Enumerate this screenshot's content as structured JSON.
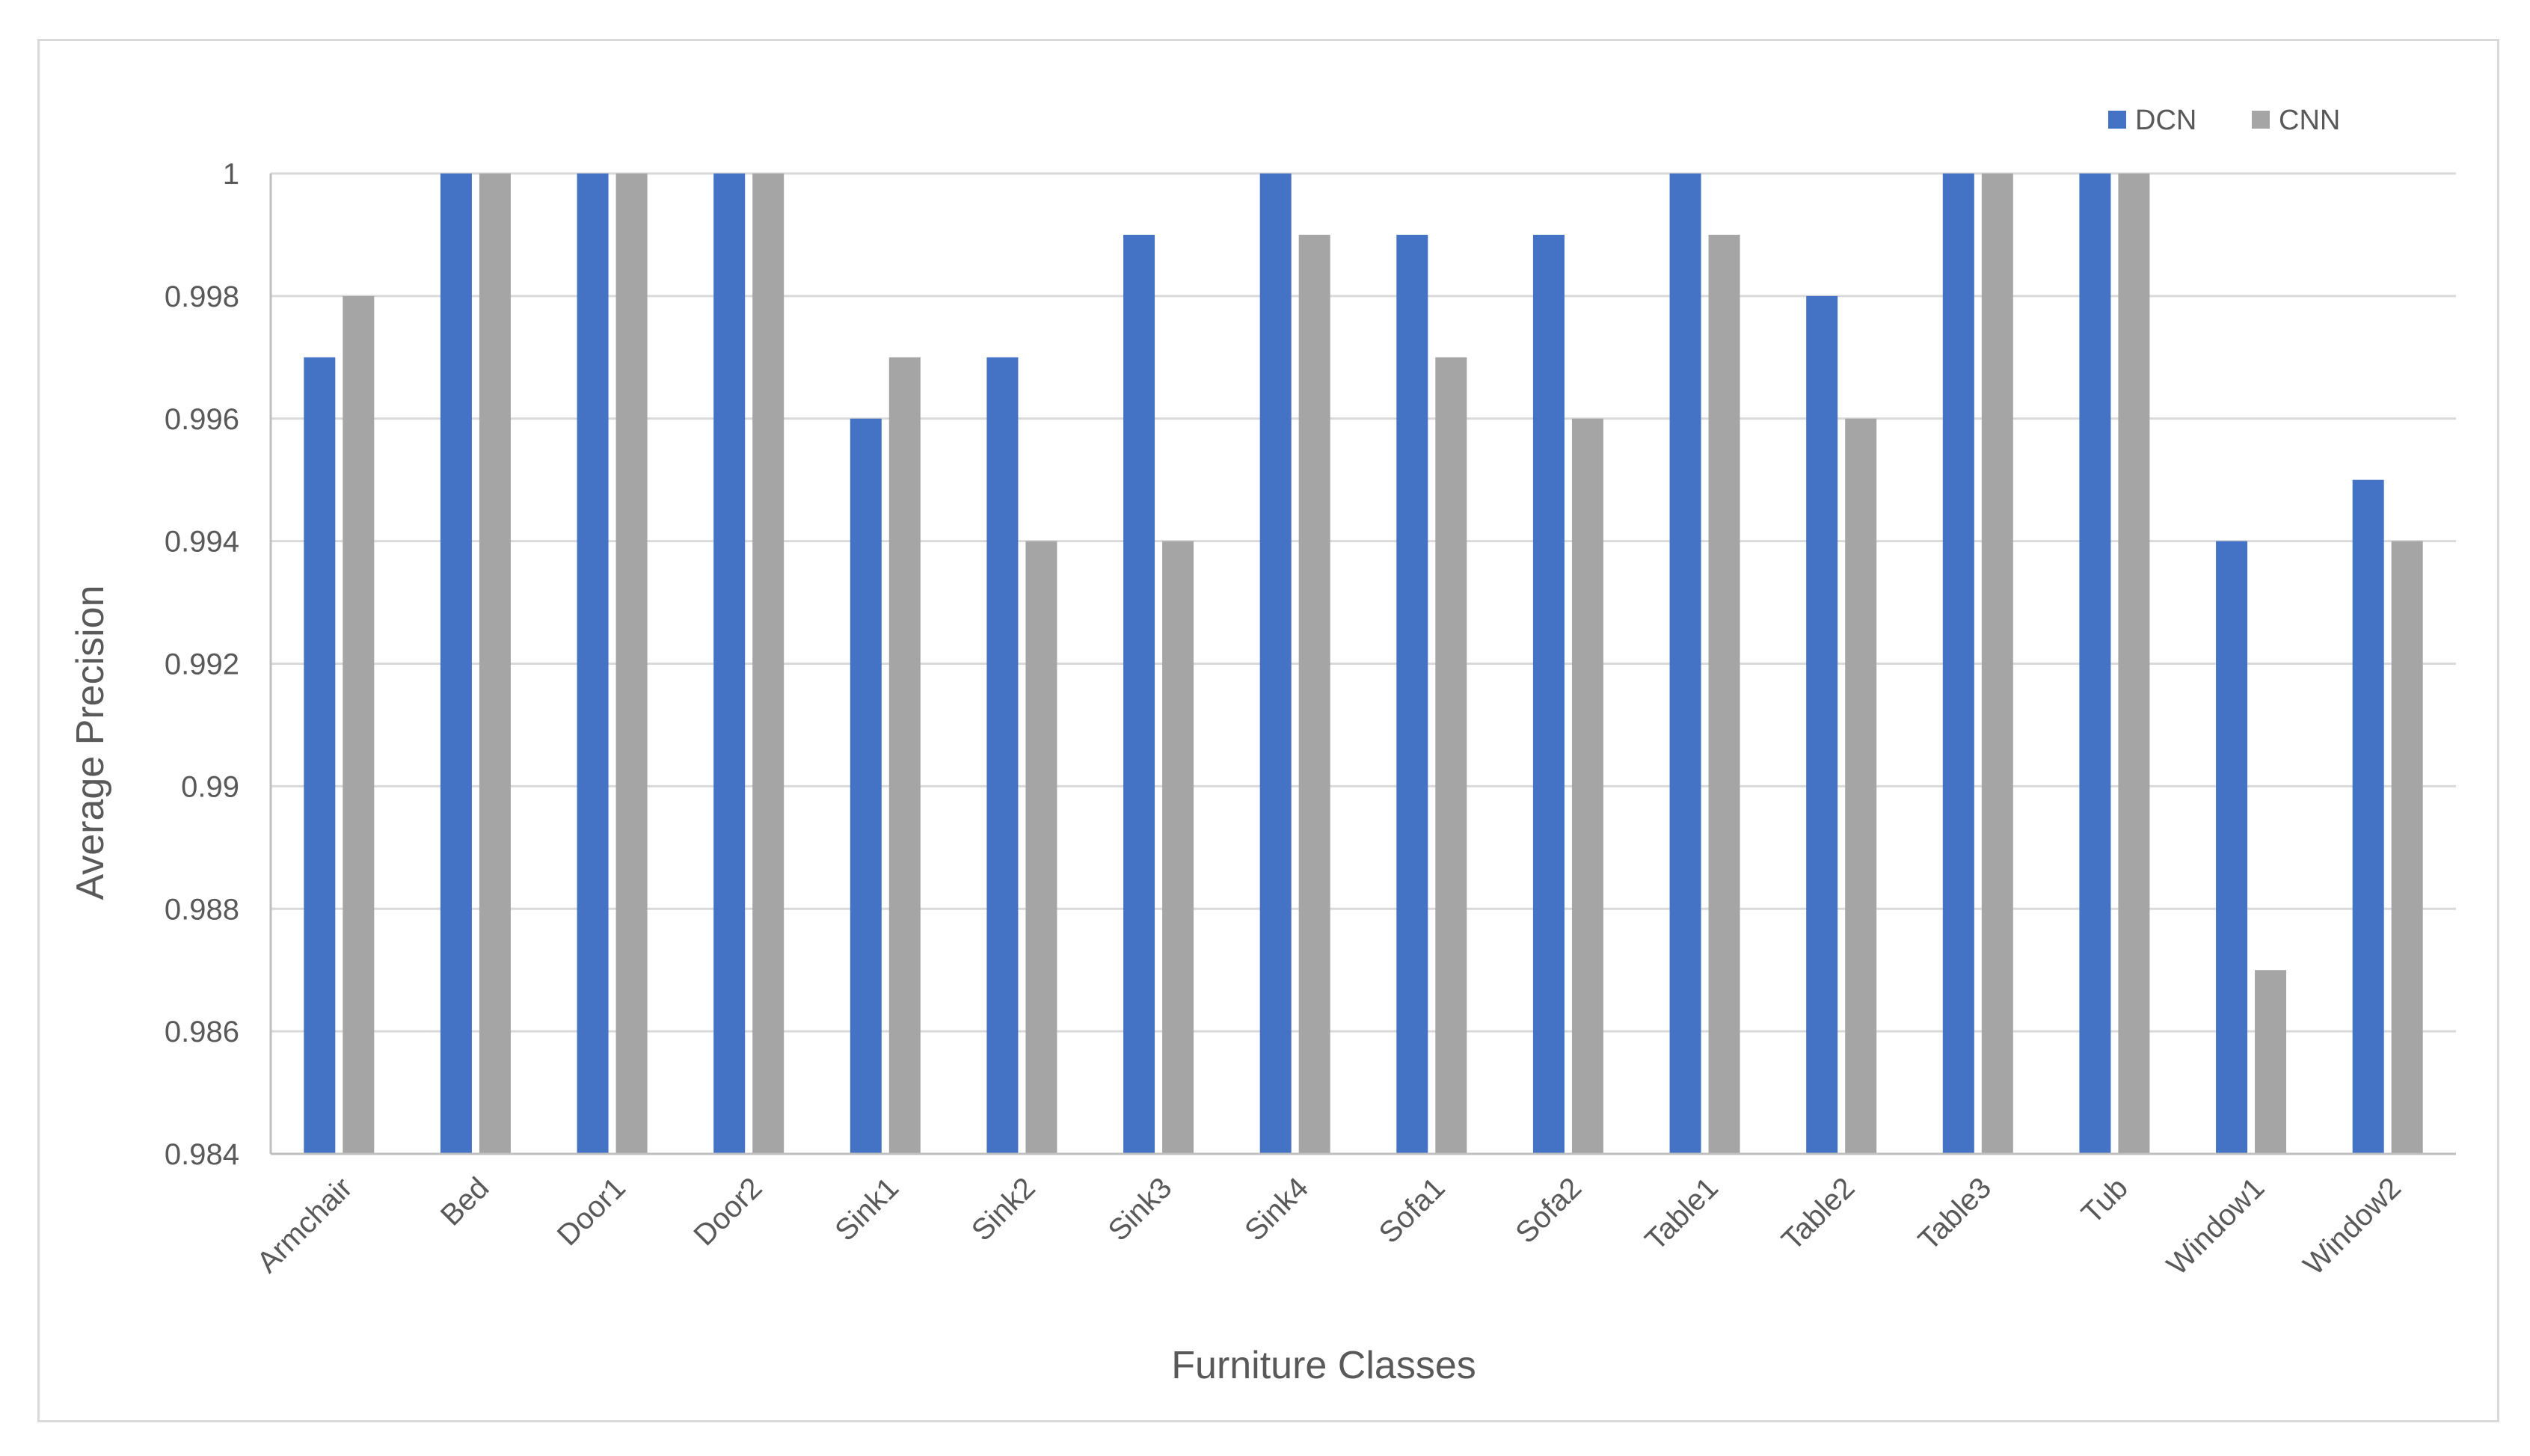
{
  "chart_data": {
    "type": "bar",
    "title": "",
    "xlabel": "Furniture Classes",
    "ylabel": "Average Precision",
    "ylim": [
      0.984,
      1.0
    ],
    "y_ticks": [
      "0.984",
      "0.986",
      "0.988",
      "0.99",
      "0.992",
      "0.994",
      "0.996",
      "0.998",
      "1"
    ],
    "y_tick_values": [
      0.984,
      0.986,
      0.988,
      0.99,
      0.992,
      0.994,
      0.996,
      0.998,
      1.0
    ],
    "grid": true,
    "legend_position": "top-right",
    "categories": [
      "Armchair",
      "Bed",
      "Door1",
      "Door2",
      "Sink1",
      "Sink2",
      "Sink3",
      "Sink4",
      "Sofa1",
      "Sofa2",
      "Table1",
      "Table2",
      "Table3",
      "Tub",
      "Window1",
      "Window2"
    ],
    "series": [
      {
        "name": "DCN",
        "color": "#4472c4",
        "values": [
          0.997,
          1.0,
          1.0,
          1.0,
          0.996,
          0.997,
          0.999,
          1.0,
          0.999,
          0.999,
          1.0,
          0.998,
          1.0,
          1.0,
          0.994,
          0.995
        ]
      },
      {
        "name": "CNN",
        "color": "#a5a5a5",
        "values": [
          0.998,
          1.0,
          1.0,
          1.0,
          0.997,
          0.994,
          0.994,
          0.999,
          0.997,
          0.996,
          0.999,
          0.996,
          1.0,
          1.0,
          0.987,
          0.994
        ]
      }
    ],
    "colors": {
      "gridline": "#d9d9d9",
      "axis": "#bfbfbf",
      "text": "#595959"
    }
  }
}
